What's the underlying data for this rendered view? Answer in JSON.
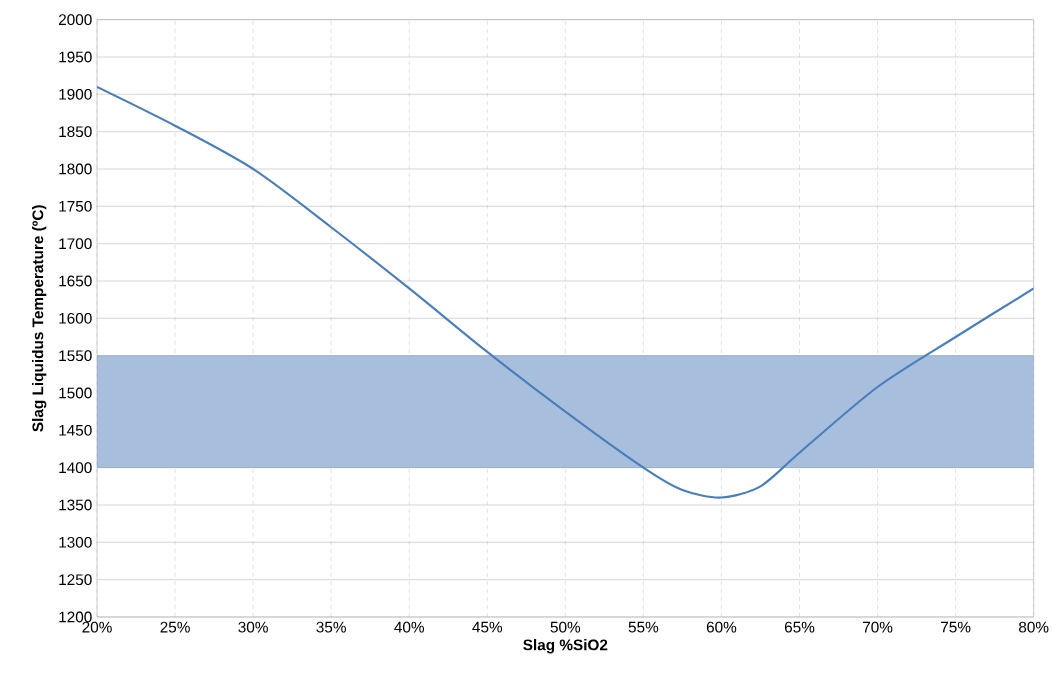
{
  "chart_data": {
    "type": "line",
    "xlabel": "Slag %SiO2",
    "ylabel": "Slag Liquidus Temperature (ºC)",
    "x": [
      20,
      25,
      30,
      35,
      40,
      45,
      50,
      55,
      57.5,
      60,
      62.5,
      65,
      70,
      75,
      80
    ],
    "series": [
      {
        "color": "#4a7ebb",
        "values": [
          1910,
          1858,
          1800,
          1722,
          1640,
          1555,
          1475,
          1400,
          1370,
          1360,
          1375,
          1420,
          1508,
          1575,
          1640
        ]
      }
    ],
    "bands": [
      {
        "axis": "y",
        "from": 1400,
        "to": 1550,
        "color": "#a7bfdd"
      }
    ],
    "xlim": [
      20,
      80
    ],
    "xticks": [
      {
        "value": 20,
        "label": "20%"
      },
      {
        "value": 25,
        "label": "25%"
      },
      {
        "value": 30,
        "label": "30%"
      },
      {
        "value": 35,
        "label": "35%"
      },
      {
        "value": 40,
        "label": "40%"
      },
      {
        "value": 45,
        "label": "45%"
      },
      {
        "value": 50,
        "label": "50%"
      },
      {
        "value": 55,
        "label": "55%"
      },
      {
        "value": 60,
        "label": "60%"
      },
      {
        "value": 65,
        "label": "65%"
      },
      {
        "value": 70,
        "label": "70%"
      },
      {
        "value": 75,
        "label": "75%"
      },
      {
        "value": 80,
        "label": "80%"
      }
    ],
    "ylim": [
      1200,
      2000
    ],
    "yticks": [
      1200,
      1250,
      1300,
      1350,
      1400,
      1450,
      1500,
      1550,
      1600,
      1650,
      1700,
      1750,
      1800,
      1850,
      1900,
      1950,
      2000
    ],
    "grid": true,
    "marker": "none",
    "line_style": "solid"
  }
}
